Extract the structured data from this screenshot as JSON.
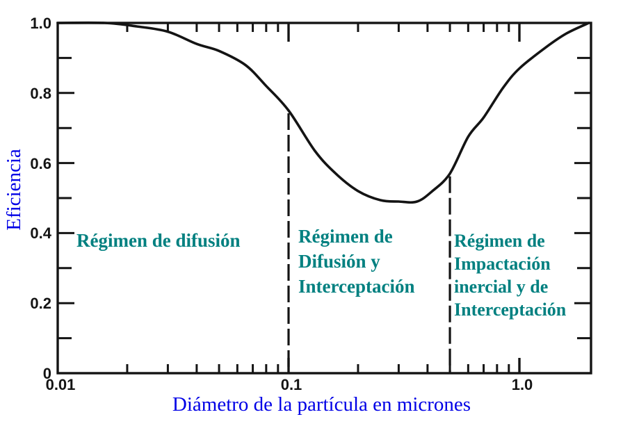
{
  "figure": {
    "background": "#ffffff",
    "ink_color": "#141414",
    "axis_label_color": "#0000e6",
    "region_label_color": "#008080"
  },
  "chart_data": {
    "type": "line",
    "title": "",
    "xlabel": "Diámetro de la partícula en micrones",
    "ylabel": "Eficiencia",
    "x_scale": "log",
    "xlim": [
      0.01,
      2.0
    ],
    "ylim": [
      0,
      1.0
    ],
    "grid": false,
    "legend": false,
    "x_tick_labels": [
      {
        "value": 0.01,
        "label": "0.01"
      },
      {
        "value": 0.1,
        "label": "0.1"
      },
      {
        "value": 1.0,
        "label": "1.0"
      }
    ],
    "y_tick_labels": [
      {
        "value": 0,
        "label": "0"
      },
      {
        "value": 0.2,
        "label": "0.2"
      },
      {
        "value": 0.4,
        "label": "0.4"
      },
      {
        "value": 0.6,
        "label": "0.6"
      },
      {
        "value": 0.8,
        "label": "0.8"
      },
      {
        "value": 1.0,
        "label": "1.0"
      }
    ],
    "y_minor_tick_step": 0.1,
    "series": [
      {
        "name": "eficiencia-del-filtro",
        "x": [
          0.01,
          0.016,
          0.022,
          0.03,
          0.04,
          0.05,
          0.065,
          0.08,
          0.1,
          0.13,
          0.16,
          0.2,
          0.25,
          0.3,
          0.36,
          0.42,
          0.5,
          0.6,
          0.7,
          0.85,
          1.0,
          1.3,
          1.6,
          2.0
        ],
        "y": [
          1.0,
          1.0,
          0.99,
          0.975,
          0.94,
          0.92,
          0.88,
          0.82,
          0.75,
          0.635,
          0.57,
          0.52,
          0.494,
          0.49,
          0.49,
          0.52,
          0.57,
          0.675,
          0.73,
          0.815,
          0.87,
          0.93,
          0.97,
          1.0
        ]
      }
    ],
    "region_boundaries": [
      {
        "x": 0.1,
        "top_efficiency": 0.75
      },
      {
        "x": 0.5,
        "top_efficiency": 0.57
      }
    ],
    "regions": [
      {
        "name": "difusion",
        "lines": [
          "Régimen de difusión"
        ]
      },
      {
        "name": "difusion-interceptacion",
        "lines": [
          "Régimen de",
          "Difusión  y",
          "Interceptación"
        ]
      },
      {
        "name": "impactacion-interceptacion",
        "lines": [
          "Régimen de",
          "Impactación",
          "inercial y de",
          "Interceptación"
        ]
      }
    ]
  }
}
